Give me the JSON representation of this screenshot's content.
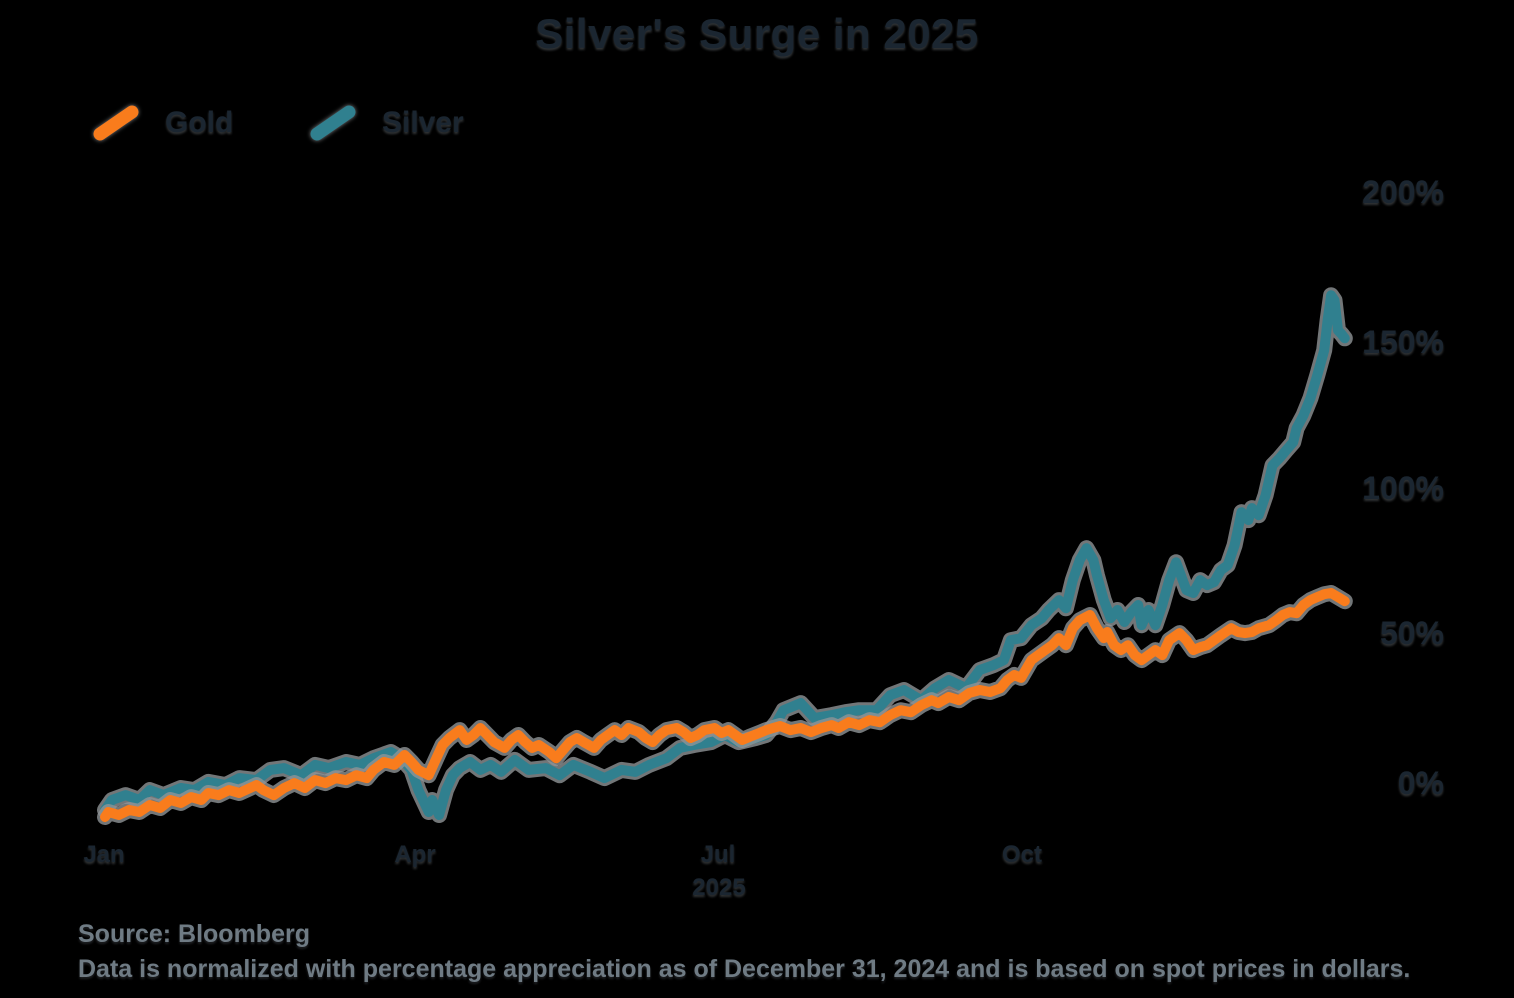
{
  "colors": {
    "background": "#000000",
    "dark_text": "#1B2631",
    "muted_text": "#6F7B84",
    "gold": "#F97C1C",
    "silver": "#30808F",
    "line_halo": "#8F9396"
  },
  "chart_data": {
    "type": "line",
    "title": "Silver's Surge in 2025",
    "x_unit": "day of year 2025",
    "x_ticks": [
      "Jan",
      "Apr",
      "Jul",
      "Oct"
    ],
    "x_year": "2025",
    "y_unit": "percentage appreciation since Dec 31, 2024",
    "y_ticks": [
      "200%",
      "150%",
      "100%",
      "50%",
      "0%"
    ],
    "ylim": [
      -15,
      215
    ],
    "grid": "off",
    "legend_position": "top-left",
    "source": "Source: Bloomberg",
    "footnote": "Data is normalized with percentage appreciation as of December 31, 2024 and is based on spot prices in dollars.",
    "series": [
      {
        "name": "Gold",
        "color": "#F97C1C",
        "points": [
          [
            0,
            -2.4
          ],
          [
            1,
            -0.7
          ],
          [
            4,
            -1.7
          ],
          [
            7,
            0
          ],
          [
            10,
            -0.7
          ],
          [
            13,
            1.7
          ],
          [
            16,
            0.7
          ],
          [
            19,
            3.4
          ],
          [
            22,
            2.4
          ],
          [
            25,
            4.4
          ],
          [
            28,
            3.4
          ],
          [
            30,
            5.8
          ],
          [
            33,
            5.1
          ],
          [
            36,
            6.8
          ],
          [
            39,
            5.8
          ],
          [
            44,
            8.5
          ],
          [
            46,
            6.8
          ],
          [
            49,
            5.1
          ],
          [
            52,
            7.5
          ],
          [
            55,
            9.2
          ],
          [
            58,
            7.5
          ],
          [
            61,
            10.2
          ],
          [
            64,
            9.2
          ],
          [
            67,
            10.9
          ],
          [
            70,
            10.2
          ],
          [
            73,
            11.9
          ],
          [
            76,
            10.9
          ],
          [
            78,
            13.7
          ],
          [
            81,
            16.4
          ],
          [
            84,
            15.4
          ],
          [
            87,
            18.8
          ],
          [
            89,
            16.4
          ],
          [
            91,
            13.7
          ],
          [
            94,
            11.9
          ],
          [
            96,
            17.1
          ],
          [
            98,
            22.2
          ],
          [
            100,
            24.6
          ],
          [
            103,
            27.3
          ],
          [
            105,
            23.9
          ],
          [
            107,
            25.6
          ],
          [
            109,
            28
          ],
          [
            111,
            25.6
          ],
          [
            113,
            23.2
          ],
          [
            116,
            21.2
          ],
          [
            118,
            23.9
          ],
          [
            120,
            25.6
          ],
          [
            122,
            23.2
          ],
          [
            124,
            21.2
          ],
          [
            126,
            22.2
          ],
          [
            129,
            19.8
          ],
          [
            131,
            17.7
          ],
          [
            133,
            20.5
          ],
          [
            135,
            23.2
          ],
          [
            137,
            24.6
          ],
          [
            139,
            23.2
          ],
          [
            142,
            21.2
          ],
          [
            144,
            23.9
          ],
          [
            146,
            25.6
          ],
          [
            148,
            27.3
          ],
          [
            150,
            25.6
          ],
          [
            152,
            28
          ],
          [
            155,
            26.6
          ],
          [
            157,
            24.6
          ],
          [
            159,
            23.2
          ],
          [
            161,
            25.6
          ],
          [
            163,
            27.3
          ],
          [
            166,
            28
          ],
          [
            168,
            26.6
          ],
          [
            170,
            24.6
          ],
          [
            172,
            25.6
          ],
          [
            174,
            27.3
          ],
          [
            177,
            28
          ],
          [
            179,
            26.3
          ],
          [
            181,
            27.3
          ],
          [
            183,
            25.6
          ],
          [
            185,
            23.9
          ],
          [
            187,
            24.9
          ],
          [
            190,
            26.3
          ],
          [
            192,
            27.3
          ],
          [
            194,
            28
          ],
          [
            196,
            28.7
          ],
          [
            199,
            27.3
          ],
          [
            202,
            28
          ],
          [
            205,
            26.6
          ],
          [
            208,
            28
          ],
          [
            211,
            29
          ],
          [
            213,
            28
          ],
          [
            216,
            30
          ],
          [
            219,
            29
          ],
          [
            222,
            30.7
          ],
          [
            225,
            30
          ],
          [
            228,
            32.4
          ],
          [
            231,
            34.1
          ],
          [
            234,
            33.4
          ],
          [
            237,
            35.8
          ],
          [
            240,
            37.5
          ],
          [
            242,
            36.5
          ],
          [
            245,
            38.6
          ],
          [
            248,
            37.5
          ],
          [
            251,
            40
          ],
          [
            254,
            41
          ],
          [
            257,
            40.3
          ],
          [
            260,
            41.6
          ],
          [
            262,
            44.4
          ],
          [
            264,
            46.1
          ],
          [
            266,
            45.1
          ],
          [
            269,
            51.2
          ],
          [
            271,
            52.9
          ],
          [
            273,
            54.6
          ],
          [
            275,
            56.3
          ],
          [
            277,
            58.7
          ],
          [
            279,
            56.3
          ],
          [
            281,
            62.1
          ],
          [
            283,
            64.8
          ],
          [
            286,
            66.6
          ],
          [
            288,
            62.1
          ],
          [
            290,
            58.7
          ],
          [
            291,
            60.8
          ],
          [
            293,
            56.3
          ],
          [
            295,
            54.6
          ],
          [
            297,
            56.3
          ],
          [
            299,
            52.9
          ],
          [
            301,
            51.2
          ],
          [
            303,
            52.9
          ],
          [
            305,
            54.6
          ],
          [
            307,
            52.9
          ],
          [
            309,
            58
          ],
          [
            312,
            60.4
          ],
          [
            314,
            58
          ],
          [
            316,
            54.6
          ],
          [
            318,
            55.6
          ],
          [
            320,
            56.3
          ],
          [
            322,
            58
          ],
          [
            324,
            59.7
          ],
          [
            327,
            62.1
          ],
          [
            329,
            60.8
          ],
          [
            331,
            60.4
          ],
          [
            333,
            60.8
          ],
          [
            335,
            62.1
          ],
          [
            338,
            63.1
          ],
          [
            340,
            64.8
          ],
          [
            342,
            66.6
          ],
          [
            344,
            67.6
          ],
          [
            346,
            67.2
          ],
          [
            348,
            70
          ],
          [
            350,
            71.7
          ],
          [
            352,
            72.7
          ],
          [
            354,
            73.7
          ],
          [
            356,
            74.1
          ],
          [
            358,
            72.7
          ],
          [
            360,
            71.3
          ]
        ]
      },
      {
        "name": "Silver",
        "color": "#30808F",
        "points": [
          [
            0,
            0
          ],
          [
            2,
            3.4
          ],
          [
            6,
            5.1
          ],
          [
            10,
            3.4
          ],
          [
            13,
            6.8
          ],
          [
            17,
            5.1
          ],
          [
            22,
            7.5
          ],
          [
            26,
            6.8
          ],
          [
            30,
            9.6
          ],
          [
            35,
            8.5
          ],
          [
            39,
            10.9
          ],
          [
            44,
            10.2
          ],
          [
            48,
            13.7
          ],
          [
            52,
            14.3
          ],
          [
            57,
            11.9
          ],
          [
            61,
            15.4
          ],
          [
            65,
            14.3
          ],
          [
            70,
            16.4
          ],
          [
            74,
            15.4
          ],
          [
            78,
            17.7
          ],
          [
            83,
            19.8
          ],
          [
            86,
            17.7
          ],
          [
            89,
            13.7
          ],
          [
            91,
            6.8
          ],
          [
            94,
            -0.7
          ],
          [
            95,
            3.4
          ],
          [
            97,
            -1.7
          ],
          [
            99,
            6.8
          ],
          [
            101,
            11.9
          ],
          [
            103,
            14.3
          ],
          [
            106,
            16.4
          ],
          [
            109,
            13.7
          ],
          [
            112,
            15.4
          ],
          [
            115,
            13
          ],
          [
            119,
            17.1
          ],
          [
            123,
            13.7
          ],
          [
            128,
            14.3
          ],
          [
            132,
            11.9
          ],
          [
            136,
            15.4
          ],
          [
            141,
            13
          ],
          [
            145,
            10.9
          ],
          [
            150,
            13.7
          ],
          [
            154,
            13
          ],
          [
            158,
            15.4
          ],
          [
            163,
            17.7
          ],
          [
            167,
            21.2
          ],
          [
            171,
            22.2
          ],
          [
            176,
            23.2
          ],
          [
            180,
            25.6
          ],
          [
            184,
            23.2
          ],
          [
            189,
            24.6
          ],
          [
            192,
            25.6
          ],
          [
            195,
            30
          ],
          [
            197,
            34.1
          ],
          [
            202,
            36.5
          ],
          [
            206,
            31.4
          ],
          [
            211,
            32.4
          ],
          [
            215,
            33.4
          ],
          [
            219,
            34.1
          ],
          [
            224,
            34.1
          ],
          [
            228,
            39.2
          ],
          [
            232,
            41
          ],
          [
            237,
            37.5
          ],
          [
            241,
            41.6
          ],
          [
            245,
            44.4
          ],
          [
            250,
            41.6
          ],
          [
            254,
            47.8
          ],
          [
            258,
            49.5
          ],
          [
            261,
            51.2
          ],
          [
            263,
            58
          ],
          [
            266,
            58.7
          ],
          [
            269,
            63.1
          ],
          [
            272,
            65.5
          ],
          [
            274,
            68.3
          ],
          [
            277,
            71.7
          ],
          [
            279,
            68.9
          ],
          [
            281,
            78.5
          ],
          [
            283,
            85.3
          ],
          [
            285,
            89.4
          ],
          [
            287,
            85.3
          ],
          [
            288,
            80.2
          ],
          [
            290,
            71.7
          ],
          [
            292,
            65.5
          ],
          [
            294,
            68.3
          ],
          [
            296,
            64.2
          ],
          [
            298,
            67.6
          ],
          [
            300,
            70
          ],
          [
            301,
            63.1
          ],
          [
            303,
            68.3
          ],
          [
            305,
            63.1
          ],
          [
            307,
            70
          ],
          [
            309,
            78.5
          ],
          [
            311,
            84.6
          ],
          [
            314,
            75.1
          ],
          [
            316,
            74.1
          ],
          [
            318,
            78.5
          ],
          [
            320,
            76.8
          ],
          [
            322,
            77.8
          ],
          [
            324,
            81.9
          ],
          [
            326,
            83.6
          ],
          [
            328,
            90.4
          ],
          [
            330,
            101.7
          ],
          [
            332,
            99
          ],
          [
            333,
            103.1
          ],
          [
            335,
            100.7
          ],
          [
            337,
            107.5
          ],
          [
            339,
            117.7
          ],
          [
            341,
            120.1
          ],
          [
            343,
            122.9
          ],
          [
            345,
            125.6
          ],
          [
            346,
            130.4
          ],
          [
            348,
            134.8
          ],
          [
            350,
            140.6
          ],
          [
            352,
            148.5
          ],
          [
            354,
            157
          ],
          [
            355,
            167.2
          ],
          [
            356,
            175.8
          ],
          [
            357,
            174.1
          ],
          [
            358,
            163.8
          ],
          [
            359,
            162.6
          ],
          [
            360,
            161.1
          ]
        ]
      }
    ]
  }
}
